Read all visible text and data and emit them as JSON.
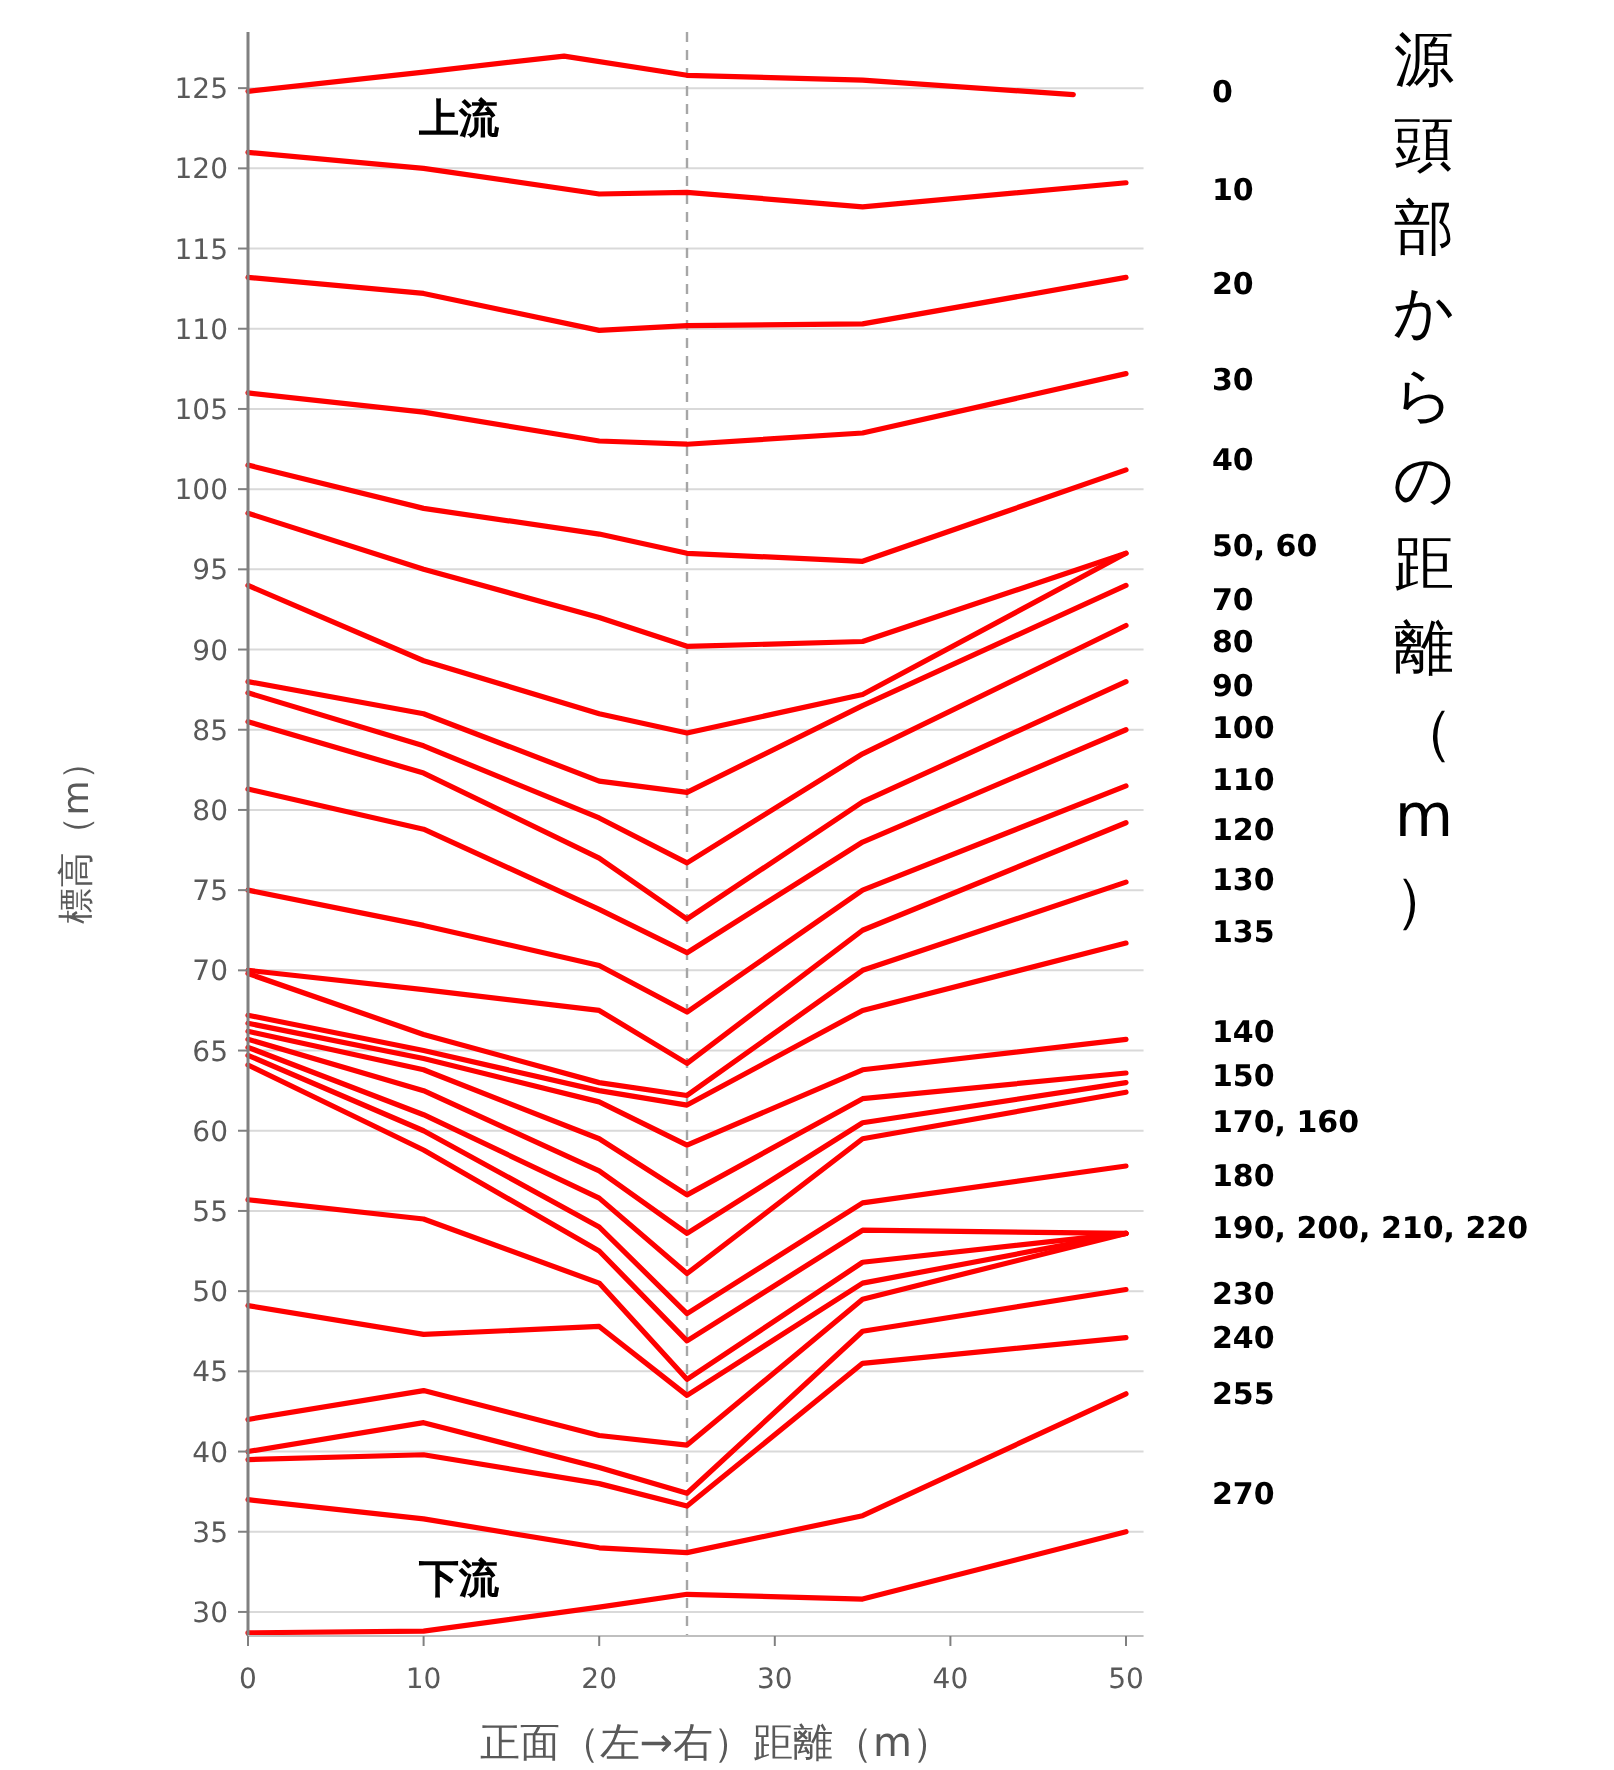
{
  "chart_data": {
    "type": "line",
    "xlabel": "正面（左→右）距離（m）",
    "ylabel": "標高（m）",
    "legend_title": "源頭部からの距離（m）",
    "xlim": [
      0,
      51
    ],
    "ylim": [
      28.5,
      128.5
    ],
    "xticks": [
      0,
      10,
      20,
      30,
      40,
      50
    ],
    "yticks": [
      30,
      35,
      40,
      45,
      50,
      55,
      60,
      65,
      70,
      75,
      80,
      85,
      90,
      95,
      100,
      105,
      110,
      115,
      120,
      125
    ],
    "grid": "y",
    "marker": "none",
    "line_style": "solid",
    "ref_lines": [
      {
        "axis": "x",
        "value": 25,
        "color": "#a6a6a6",
        "line_style": "dashed"
      }
    ],
    "annotations": [
      "上流",
      "下流",
      "0",
      "10",
      "20",
      "30",
      "40",
      "50, 60",
      "70",
      "80",
      "90",
      "100",
      "110",
      "120",
      "130",
      "135",
      "140",
      "150",
      "170, 160",
      "180",
      "190, 200, 210, 220",
      "230",
      "240",
      "255",
      "270"
    ],
    "series": [
      {
        "color": "#ff0000",
        "x": [
          0,
          10,
          18,
          25,
          35,
          47
        ],
        "values": [
          124.8,
          126,
          127,
          125.8,
          125.5,
          124.6
        ]
      },
      {
        "color": "#ff0000",
        "x": [
          0,
          10,
          20,
          25,
          35,
          50
        ],
        "values": [
          121,
          120,
          118.4,
          118.5,
          117.6,
          119.1
        ]
      },
      {
        "color": "#ff0000",
        "x": [
          0,
          10,
          20,
          25,
          35,
          50
        ],
        "values": [
          113.2,
          112.2,
          109.9,
          110.2,
          110.3,
          113.2
        ]
      },
      {
        "color": "#ff0000",
        "x": [
          0,
          10,
          20,
          25,
          35,
          50
        ],
        "values": [
          106,
          104.8,
          103,
          102.8,
          103.5,
          107.2
        ]
      },
      {
        "color": "#ff0000",
        "x": [
          0,
          10,
          20,
          25,
          35,
          50
        ],
        "values": [
          101.5,
          98.8,
          97.2,
          96,
          95.5,
          101.2
        ]
      },
      {
        "color": "#ff0000",
        "x": [
          0,
          10,
          20,
          25,
          35,
          50
        ],
        "values": [
          98.5,
          95,
          92,
          90.2,
          90.5,
          96
        ]
      },
      {
        "color": "#ff0000",
        "x": [
          0,
          10,
          20,
          25,
          35,
          50
        ],
        "values": [
          94,
          89.3,
          86,
          84.8,
          87.2,
          96
        ]
      },
      {
        "color": "#ff0000",
        "x": [
          0,
          10,
          20,
          25,
          35,
          50
        ],
        "values": [
          88,
          86,
          81.8,
          81.1,
          86.5,
          94
        ]
      },
      {
        "color": "#ff0000",
        "x": [
          0,
          10,
          20,
          25,
          35,
          50
        ],
        "values": [
          87.3,
          84,
          79.5,
          76.7,
          83.5,
          91.5
        ]
      },
      {
        "color": "#ff0000",
        "x": [
          0,
          10,
          20,
          25,
          35,
          50
        ],
        "values": [
          85.5,
          82.3,
          77,
          73.2,
          80.5,
          88
        ]
      },
      {
        "color": "#ff0000",
        "x": [
          0,
          10,
          20,
          25,
          35,
          50
        ],
        "values": [
          81.3,
          78.8,
          73.8,
          71.1,
          78,
          85
        ]
      },
      {
        "color": "#ff0000",
        "x": [
          0,
          10,
          20,
          25,
          35,
          50
        ],
        "values": [
          75,
          72.8,
          70.3,
          67.4,
          75,
          81.5
        ]
      },
      {
        "color": "#ff0000",
        "x": [
          0,
          10,
          20,
          25,
          35,
          50
        ],
        "values": [
          70,
          68.8,
          67.5,
          64.2,
          72.5,
          79.2
        ]
      },
      {
        "color": "#ff0000",
        "x": [
          0,
          10,
          20,
          25,
          35,
          50
        ],
        "values": [
          69.8,
          66,
          63,
          62.2,
          70,
          75.5
        ]
      },
      {
        "color": "#ff0000",
        "x": [
          0,
          10,
          20,
          25,
          35,
          50
        ],
        "values": [
          67.2,
          65,
          62.5,
          61.6,
          67.5,
          71.7
        ]
      },
      {
        "color": "#ff0000",
        "x": [
          0,
          10,
          20,
          25,
          35,
          50
        ],
        "values": [
          66.7,
          64.5,
          61.8,
          59.1,
          63.8,
          65.7
        ]
      },
      {
        "color": "#ff0000",
        "x": [
          0,
          10,
          20,
          25,
          35,
          50
        ],
        "values": [
          66.2,
          63.8,
          59.5,
          56,
          62,
          63.6
        ]
      },
      {
        "color": "#ff0000",
        "x": [
          0,
          10,
          20,
          25,
          35,
          50
        ],
        "values": [
          65.7,
          62.5,
          57.5,
          53.6,
          60.5,
          63
        ]
      },
      {
        "color": "#ff0000",
        "x": [
          0,
          10,
          20,
          25,
          35,
          50
        ],
        "values": [
          65.2,
          61,
          55.8,
          51.1,
          59.5,
          62.4
        ]
      },
      {
        "color": "#ff0000",
        "x": [
          0,
          10,
          20,
          25,
          35,
          50
        ],
        "values": [
          64.7,
          60,
          54,
          48.6,
          55.5,
          57.8
        ]
      },
      {
        "color": "#ff0000",
        "x": [
          0,
          10,
          20,
          25,
          35,
          50
        ],
        "values": [
          64.1,
          58.8,
          52.5,
          46.9,
          53.8,
          53.6
        ]
      },
      {
        "color": "#ff0000",
        "x": [
          0,
          10,
          20,
          25,
          35,
          50
        ],
        "values": [
          55.7,
          54.5,
          50.5,
          44.5,
          51.8,
          53.6
        ]
      },
      {
        "color": "#ff0000",
        "x": [
          0,
          10,
          20,
          25,
          35,
          50
        ],
        "values": [
          49.1,
          47.3,
          47.8,
          43.5,
          50.5,
          53.6
        ]
      },
      {
        "color": "#ff0000",
        "x": [
          0,
          10,
          20,
          25,
          35,
          50
        ],
        "values": [
          42,
          43.8,
          41,
          40.4,
          49.5,
          53.6
        ]
      },
      {
        "color": "#ff0000",
        "x": [
          0,
          10,
          20,
          25,
          35,
          50
        ],
        "values": [
          40,
          41.8,
          39,
          37.4,
          47.5,
          50.1
        ]
      },
      {
        "color": "#ff0000",
        "x": [
          0,
          10,
          20,
          25,
          35,
          50
        ],
        "values": [
          39.5,
          39.8,
          38,
          36.6,
          45.5,
          47.1
        ]
      },
      {
        "color": "#ff0000",
        "x": [
          0,
          10,
          20,
          25,
          35,
          50
        ],
        "values": [
          37,
          35.8,
          34,
          33.7,
          36,
          43.6
        ]
      },
      {
        "color": "#ff0000",
        "x": [
          0,
          10,
          20,
          25,
          35,
          50
        ],
        "values": [
          28.7,
          28.8,
          30.3,
          31.1,
          30.8,
          35
        ]
      }
    ]
  }
}
